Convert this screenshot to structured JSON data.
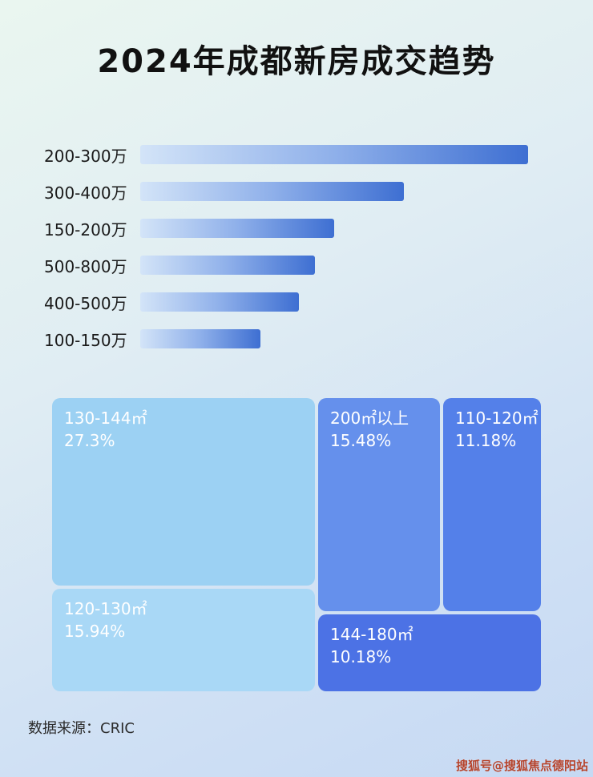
{
  "page": {
    "title": "2024年成都新房成交趋势",
    "source": "数据来源：CRIC",
    "watermark": "搜狐号@搜狐焦点德阳站"
  },
  "chart_data": [
    {
      "type": "bar",
      "orientation": "horizontal",
      "title": "2024年成都新房成交趋势",
      "categories": [
        "200-300万",
        "300-400万",
        "150-200万",
        "500-800万",
        "400-500万",
        "100-150万"
      ],
      "values": [
        100,
        68,
        50,
        45,
        41,
        31
      ],
      "value_note": "relative bar lengths, longest bar = 100 (no numeric axis shown)",
      "xlabel": "",
      "ylabel": "",
      "grid": false,
      "legend": false,
      "bar_color_gradient": [
        "#d3e4f8",
        "#3e6fd2"
      ]
    },
    {
      "type": "treemap",
      "items": [
        {
          "label": "130-144㎡",
          "value": "27.3%",
          "color": "#9cd1f3"
        },
        {
          "label": "200㎡以上",
          "value": "15.48%",
          "color": "#6590ec"
        },
        {
          "label": "110-120㎡",
          "value": "11.18%",
          "color": "#5480e9"
        },
        {
          "label": "120-130㎡",
          "value": "15.94%",
          "color": "#a9d8f6"
        },
        {
          "label": "144-180㎡",
          "value": "10.18%",
          "color": "#4c72e5"
        }
      ]
    }
  ]
}
